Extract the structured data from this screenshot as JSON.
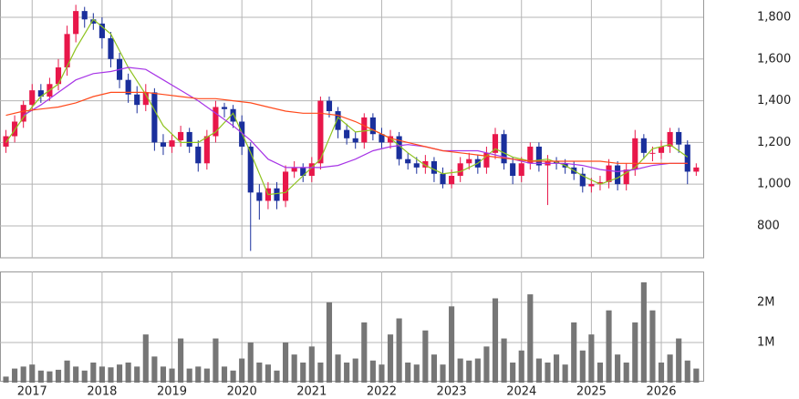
{
  "chart_data": {
    "type": "candlestick",
    "x": [
      2016.625,
      2016.75,
      2016.875,
      2017,
      2017.125,
      2017.25,
      2017.375,
      2017.5,
      2017.625,
      2017.75,
      2017.875,
      2018,
      2018.125,
      2018.25,
      2018.375,
      2018.5,
      2018.625,
      2018.75,
      2018.875,
      2019,
      2019.125,
      2019.25,
      2019.375,
      2019.5,
      2019.625,
      2019.75,
      2019.875,
      2020,
      2020.125,
      2020.25,
      2020.375,
      2020.5,
      2020.625,
      2020.75,
      2020.875,
      2021,
      2021.125,
      2021.25,
      2021.375,
      2021.5,
      2021.625,
      2021.75,
      2021.875,
      2022,
      2022.125,
      2022.25,
      2022.375,
      2022.5,
      2022.625,
      2022.75,
      2022.875,
      2023,
      2023.125,
      2023.25,
      2023.375,
      2023.5,
      2023.625,
      2023.75,
      2023.875,
      2024,
      2024.125,
      2024.25,
      2024.375,
      2024.5,
      2024.625,
      2024.75,
      2024.875,
      2025,
      2025.125,
      2025.25,
      2025.375,
      2025.5,
      2025.625,
      2025.75,
      2025.875,
      2026,
      2026.125,
      2026.25,
      2026.375,
      2026.5
    ],
    "open": [
      1180,
      1230,
      1300,
      1380,
      1450,
      1420,
      1480,
      1560,
      1720,
      1830,
      1790,
      1770,
      1700,
      1600,
      1500,
      1430,
      1380,
      1440,
      1200,
      1180,
      1210,
      1250,
      1180,
      1100,
      1230,
      1370,
      1360,
      1300,
      1180,
      960,
      920,
      980,
      920,
      1060,
      1080,
      1040,
      1100,
      1400,
      1350,
      1260,
      1220,
      1200,
      1320,
      1240,
      1200,
      1230,
      1120,
      1100,
      1080,
      1110,
      1050,
      1000,
      1040,
      1100,
      1120,
      1080,
      1150,
      1240,
      1100,
      1040,
      1100,
      1180,
      1090,
      1110,
      1100,
      1080,
      1050,
      990,
      1000,
      1010,
      1090,
      1000,
      1070,
      1220,
      1150,
      1150,
      1180,
      1250,
      1190,
      1060
    ],
    "high": [
      1260,
      1330,
      1400,
      1480,
      1480,
      1510,
      1600,
      1760,
      1860,
      1850,
      1820,
      1800,
      1730,
      1630,
      1530,
      1470,
      1480,
      1460,
      1240,
      1240,
      1280,
      1270,
      1210,
      1260,
      1400,
      1390,
      1380,
      1330,
      1200,
      1000,
      1010,
      1010,
      1090,
      1110,
      1100,
      1130,
      1420,
      1420,
      1370,
      1290,
      1250,
      1340,
      1340,
      1270,
      1260,
      1250,
      1150,
      1130,
      1140,
      1130,
      1080,
      1070,
      1130,
      1150,
      1140,
      1180,
      1270,
      1260,
      1130,
      1130,
      1200,
      1200,
      1140,
      1130,
      1120,
      1110,
      1080,
      1030,
      1040,
      1120,
      1110,
      1100,
      1260,
      1240,
      1180,
      1210,
      1270,
      1270,
      1210,
      1100
    ],
    "low": [
      1150,
      1200,
      1270,
      1350,
      1390,
      1400,
      1450,
      1520,
      1680,
      1750,
      1740,
      1650,
      1560,
      1460,
      1390,
      1340,
      1350,
      1160,
      1140,
      1150,
      1180,
      1150,
      1060,
      1070,
      1200,
      1320,
      1270,
      1140,
      680,
      830,
      880,
      880,
      890,
      1030,
      1010,
      1010,
      1070,
      1320,
      1220,
      1190,
      1170,
      1170,
      1210,
      1170,
      1170,
      1090,
      1070,
      1050,
      1050,
      1010,
      980,
      980,
      1010,
      1070,
      1050,
      1050,
      1120,
      1070,
      1000,
      1010,
      1070,
      1060,
      900,
      1070,
      1050,
      1020,
      960,
      960,
      970,
      980,
      970,
      970,
      1040,
      1120,
      1110,
      1120,
      1150,
      1150,
      1000,
      1040
    ],
    "close": [
      1230,
      1300,
      1380,
      1450,
      1420,
      1480,
      1560,
      1720,
      1830,
      1790,
      1770,
      1700,
      1600,
      1500,
      1430,
      1380,
      1440,
      1200,
      1180,
      1210,
      1250,
      1180,
      1100,
      1230,
      1370,
      1360,
      1300,
      1180,
      960,
      920,
      980,
      920,
      1060,
      1080,
      1040,
      1100,
      1400,
      1350,
      1260,
      1220,
      1200,
      1320,
      1240,
      1200,
      1230,
      1120,
      1100,
      1080,
      1110,
      1050,
      1000,
      1040,
      1100,
      1120,
      1080,
      1150,
      1240,
      1100,
      1040,
      1100,
      1180,
      1090,
      1110,
      1100,
      1080,
      1050,
      990,
      1000,
      1010,
      1090,
      1000,
      1070,
      1220,
      1150,
      1150,
      1180,
      1250,
      1190,
      1060,
      1080
    ],
    "volume": [
      150000,
      350000,
      400000,
      450000,
      300000,
      280000,
      320000,
      550000,
      400000,
      300000,
      500000,
      400000,
      380000,
      450000,
      500000,
      400000,
      1200000,
      650000,
      400000,
      350000,
      1100000,
      350000,
      400000,
      350000,
      1100000,
      400000,
      300000,
      600000,
      1000000,
      500000,
      450000,
      300000,
      1000000,
      700000,
      500000,
      900000,
      500000,
      2000000,
      700000,
      500000,
      600000,
      1500000,
      550000,
      450000,
      1200000,
      1600000,
      500000,
      450000,
      1300000,
      700000,
      450000,
      1900000,
      600000,
      550000,
      600000,
      900000,
      2100000,
      1100000,
      500000,
      800000,
      2200000,
      600000,
      500000,
      700000,
      450000,
      1500000,
      800000,
      1200000,
      500000,
      1800000,
      700000,
      500000,
      1500000,
      2500000,
      1800000,
      500000,
      700000,
      1100000,
      550000,
      350000
    ],
    "up_color": "#e8174a",
    "down_color": "#1a2f9c",
    "volume_color": "#767676",
    "ma_x": [
      2016.625,
      2016.875,
      2017.125,
      2017.375,
      2017.625,
      2017.875,
      2018.125,
      2018.375,
      2018.625,
      2018.875,
      2019.125,
      2019.375,
      2019.625,
      2019.875,
      2020.125,
      2020.375,
      2020.625,
      2020.875,
      2021.125,
      2021.375,
      2021.625,
      2021.875,
      2022.125,
      2022.375,
      2022.625,
      2022.875,
      2023.125,
      2023.375,
      2023.625,
      2023.875,
      2024.125,
      2024.375,
      2024.625,
      2024.875,
      2025.125,
      2025.375,
      2025.625,
      2025.875,
      2026.125,
      2026.375
    ],
    "ma": [
      {
        "color": "#8fc31f",
        "values": [
          1200,
          1320,
          1420,
          1480,
          1650,
          1790,
          1720,
          1560,
          1430,
          1280,
          1200,
          1200,
          1250,
          1340,
          1150,
          950,
          960,
          1040,
          1120,
          1320,
          1250,
          1260,
          1220,
          1150,
          1090,
          1050,
          1060,
          1100,
          1170,
          1130,
          1110,
          1120,
          1090,
          1040,
          1000,
          1030,
          1080,
          1170,
          1190,
          1130
        ]
      },
      {
        "color": "#a735e6",
        "values": [
          null,
          1330,
          1380,
          1440,
          1500,
          1530,
          1540,
          1560,
          1550,
          1500,
          1450,
          1400,
          1340,
          1280,
          1210,
          1120,
          1080,
          1080,
          1080,
          1090,
          1120,
          1160,
          1180,
          1190,
          1180,
          1160,
          1160,
          1160,
          1140,
          1120,
          1100,
          1100,
          1100,
          1090,
          1070,
          1060,
          1070,
          1090,
          1100,
          1100
        ]
      },
      {
        "color": "#ff4a1c",
        "values": [
          1330,
          1350,
          1360,
          1370,
          1390,
          1420,
          1440,
          1440,
          1440,
          1430,
          1420,
          1410,
          1410,
          1400,
          1390,
          1370,
          1350,
          1340,
          1340,
          1330,
          1300,
          1260,
          1220,
          1200,
          1180,
          1160,
          1150,
          1140,
          1130,
          1120,
          1110,
          1110,
          1110,
          1110,
          1110,
          1100,
          1100,
          1100,
          1100,
          1100
        ]
      }
    ],
    "xlim": [
      2016.54,
      2026.6
    ],
    "xticks": [
      2017,
      2018,
      2019,
      2020,
      2021,
      2022,
      2023,
      2024,
      2025,
      2026
    ],
    "ylim": [
      647,
      1883
    ],
    "yticks": [
      800,
      {
        "value": 1000,
        "label": "1,000"
      },
      {
        "value": 1200,
        "label": "1,200"
      },
      {
        "value": 1400,
        "label": "1,400"
      },
      {
        "value": 1600,
        "label": "1,600"
      },
      {
        "value": 1800,
        "label": "1,800"
      }
    ],
    "vlim": [
      0,
      2770000
    ],
    "vticks": [
      {
        "value": 1000000,
        "label": "1M"
      },
      {
        "value": 2000000,
        "label": "2M"
      }
    ],
    "grid": true
  }
}
